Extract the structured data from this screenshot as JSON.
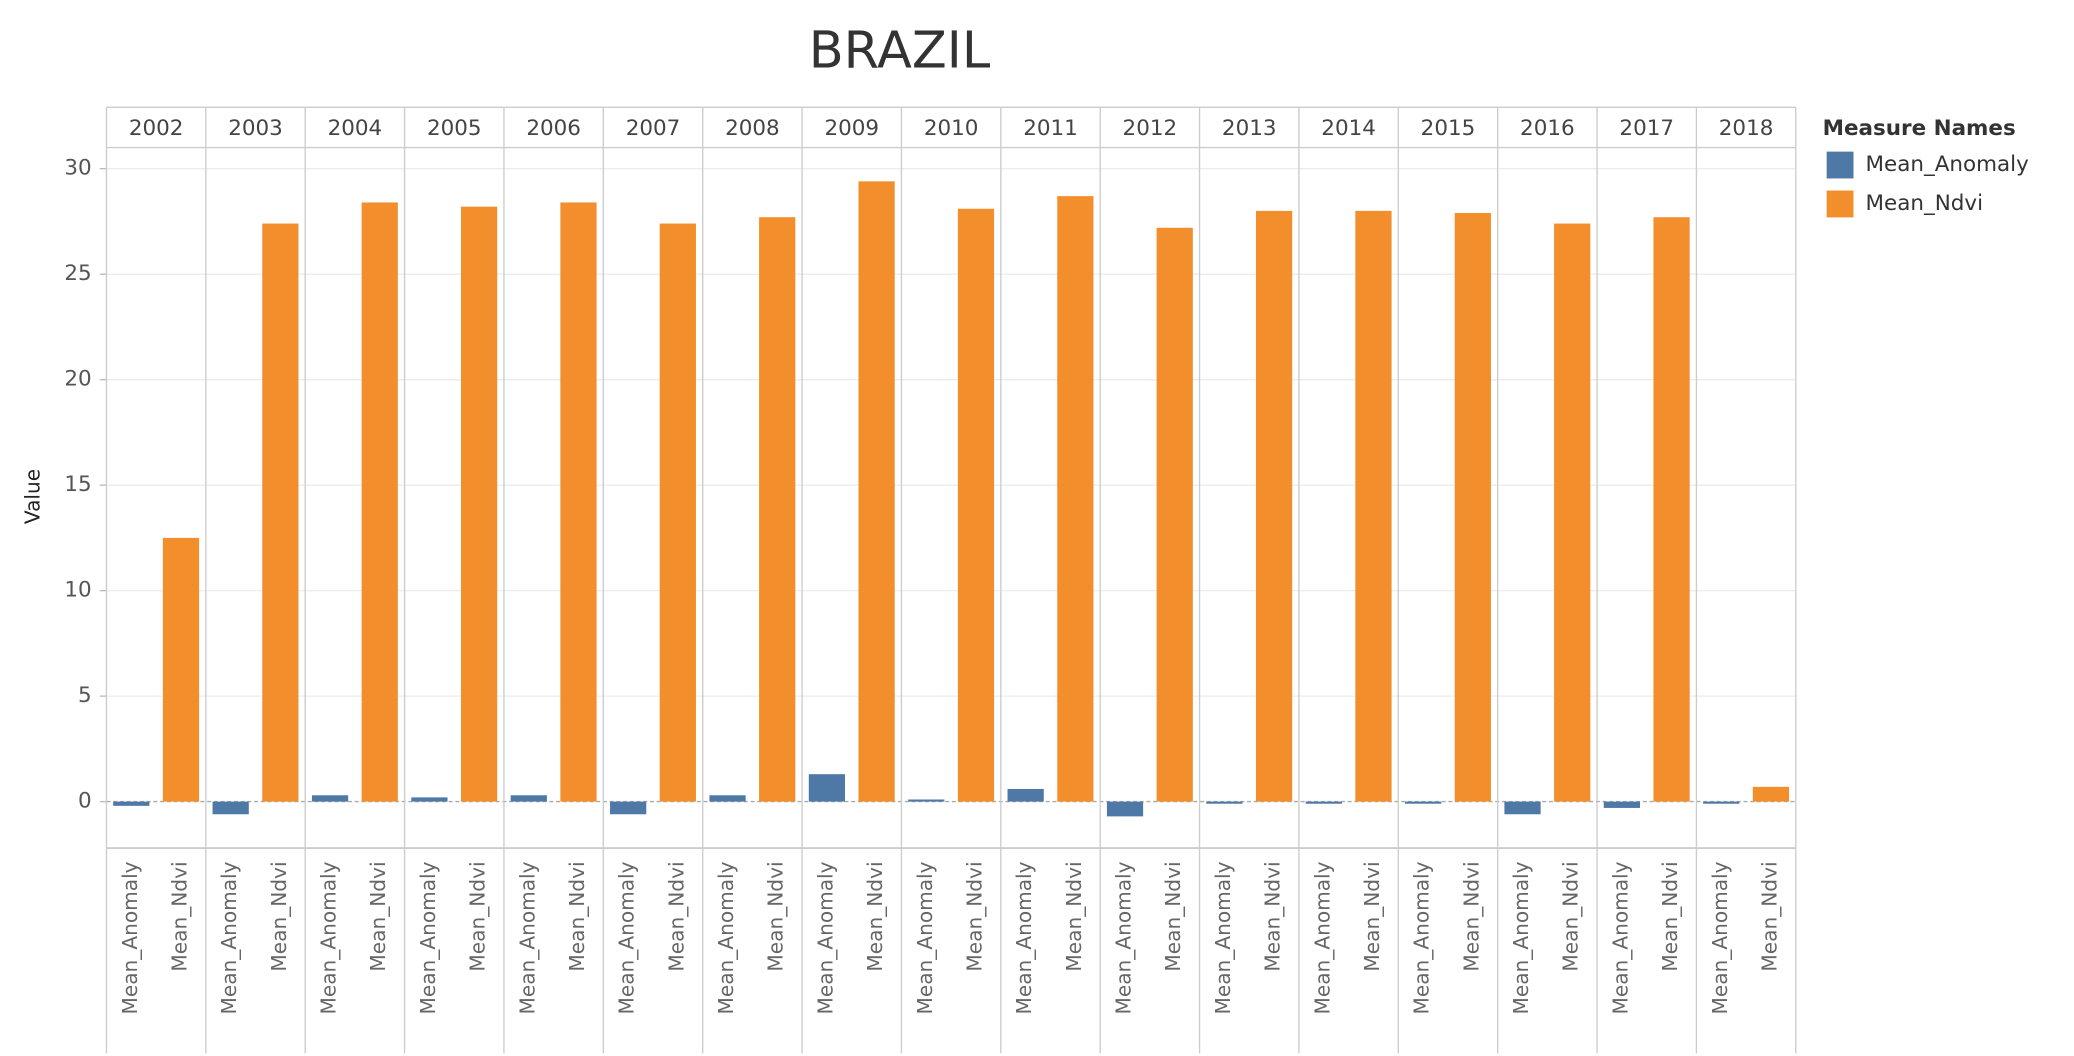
{
  "chart_data": {
    "type": "bar",
    "title": "BRAZIL",
    "y_label": "Value",
    "legend_title": "Measure Names",
    "categories": [
      "2002",
      "2003",
      "2004",
      "2005",
      "2006",
      "2007",
      "2008",
      "2009",
      "2010",
      "2011",
      "2012",
      "2013",
      "2014",
      "2015",
      "2016",
      "2017",
      "2018"
    ],
    "series": [
      {
        "name": "Mean_Anomaly",
        "color": "#4e79a7",
        "values": [
          -0.2,
          -0.6,
          0.3,
          0.2,
          0.3,
          -0.6,
          0.3,
          1.3,
          0.1,
          0.6,
          -0.7,
          -0.1,
          -0.1,
          -0.1,
          -0.6,
          -0.3,
          -0.1
        ]
      },
      {
        "name": "Mean_Ndvi",
        "color": "#f28e2b",
        "values": [
          12.5,
          27.4,
          28.4,
          28.2,
          28.4,
          27.4,
          27.7,
          29.4,
          28.1,
          28.7,
          27.2,
          28.0,
          28.0,
          27.9,
          27.4,
          27.7,
          0.7
        ]
      }
    ],
    "ylim": [
      -2.2,
      31
    ],
    "yticks": [
      0,
      5,
      10,
      15,
      20,
      25,
      30
    ],
    "grid": true
  }
}
